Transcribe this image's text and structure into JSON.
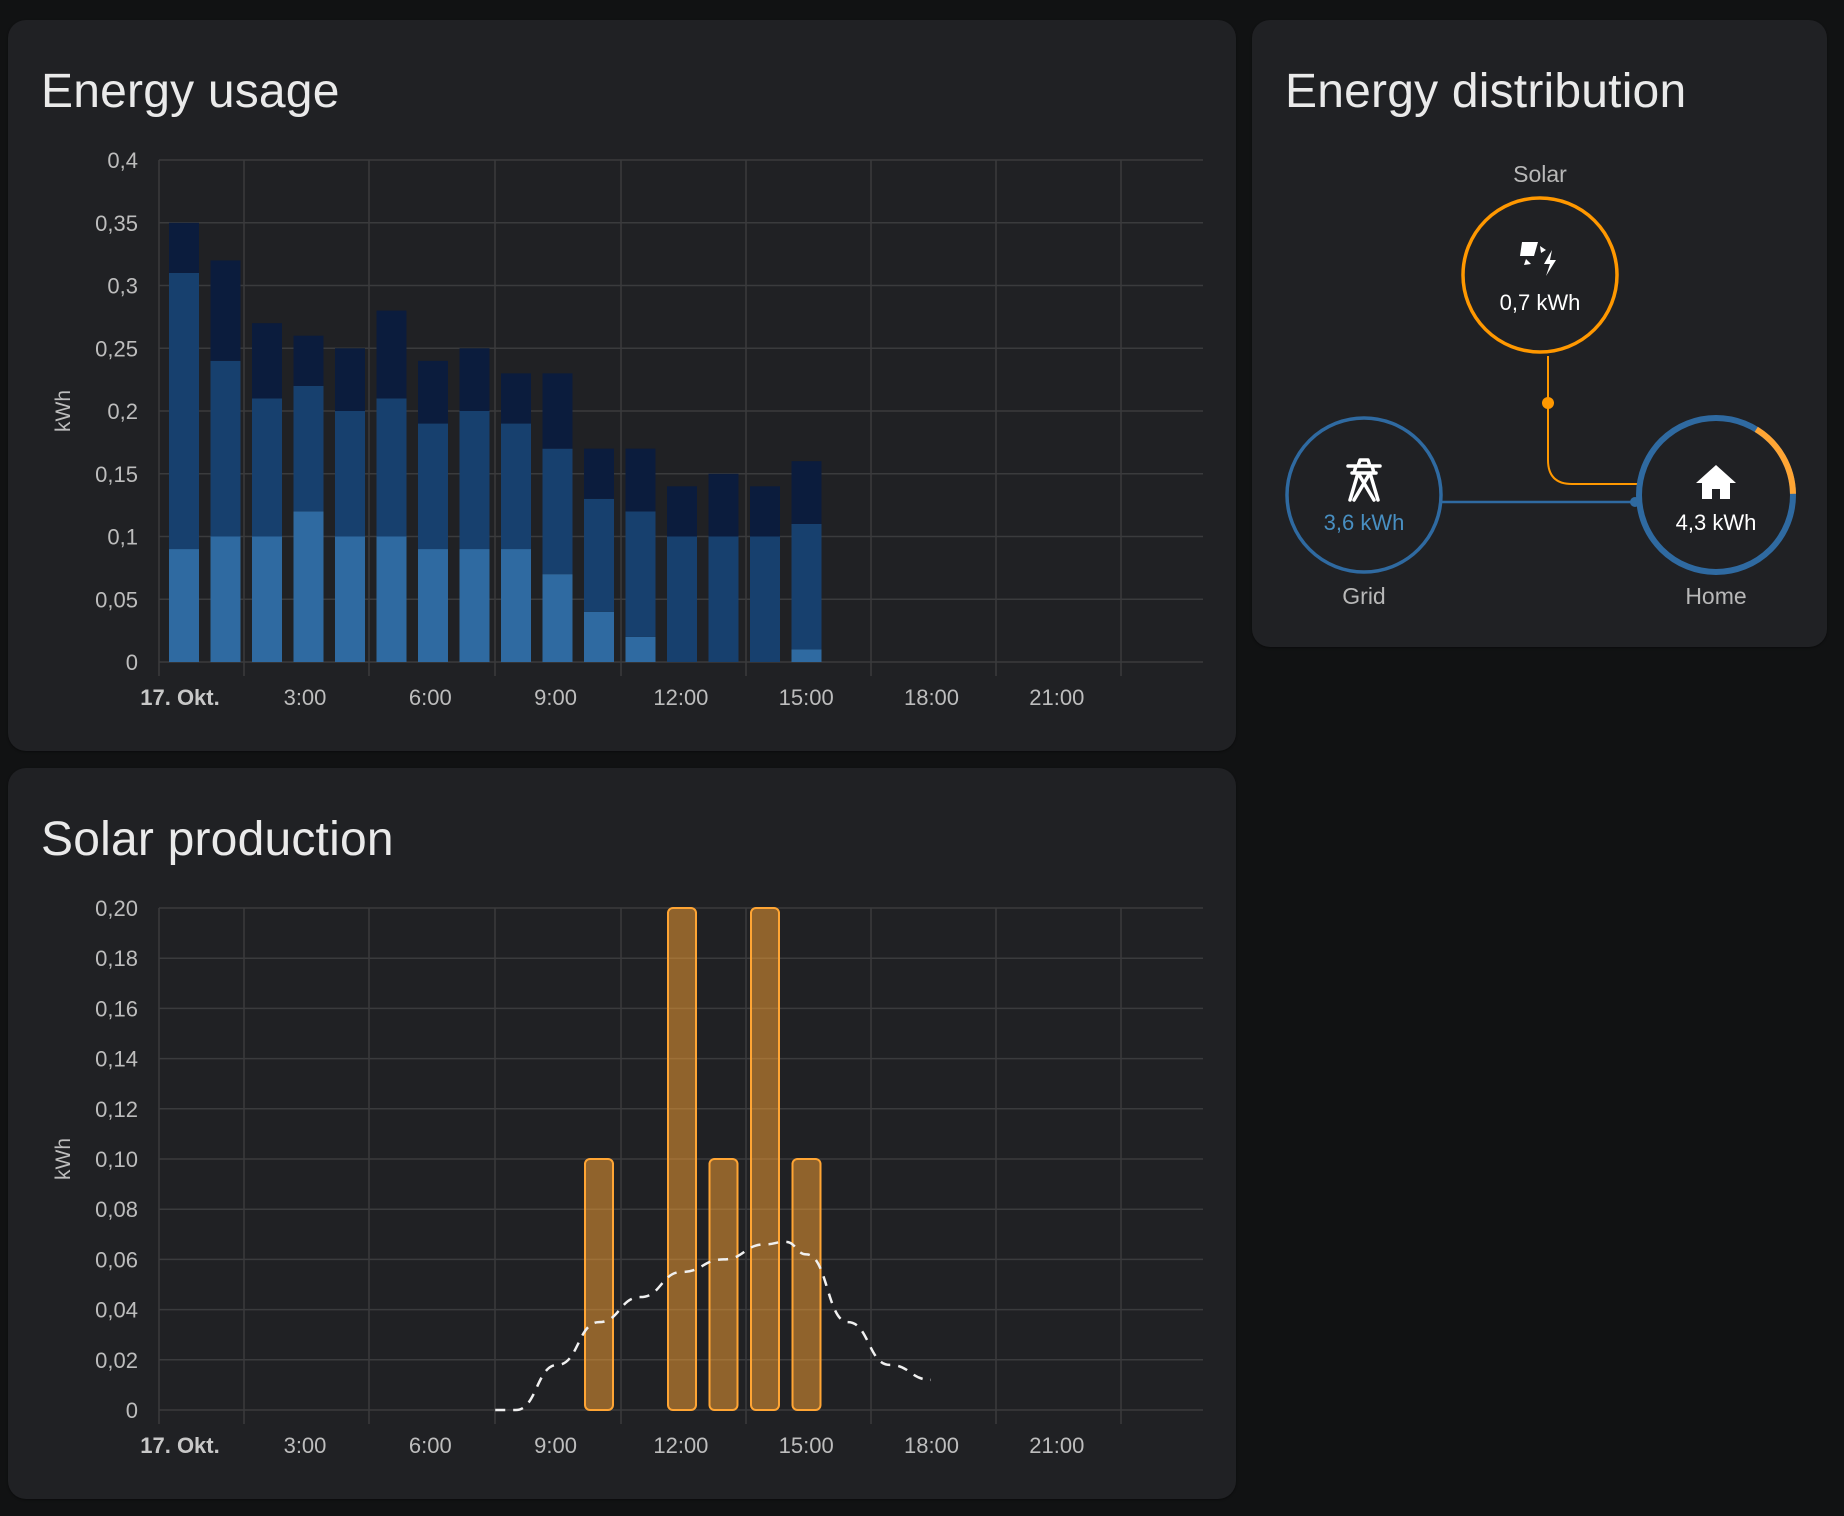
{
  "energy_usage": {
    "title": "Energy usage",
    "chart_data": {
      "type": "bar",
      "stacked": true,
      "title": "Energy usage",
      "xlabel": "",
      "ylabel": "kWh",
      "ylim": [
        0,
        0.4
      ],
      "y_ticks": [
        "0",
        "0,05",
        "0,1",
        "0,15",
        "0,2",
        "0,25",
        "0,3",
        "0,35",
        "0,4"
      ],
      "x_ticks": [
        "17. Okt.",
        "3:00",
        "6:00",
        "9:00",
        "12:00",
        "15:00",
        "18:00",
        "21:00"
      ],
      "hours": [
        0,
        1,
        2,
        3,
        4,
        5,
        6,
        7,
        8,
        9,
        10,
        11,
        12,
        13,
        14,
        15
      ],
      "grid": true,
      "series": [
        {
          "color": "#2f6aa1",
          "values": [
            0.09,
            0.1,
            0.1,
            0.12,
            0.1,
            0.1,
            0.09,
            0.09,
            0.09,
            0.07,
            0.04,
            0.02,
            0,
            0,
            0,
            0.01
          ]
        },
        {
          "color": "#17406e",
          "values": [
            0.22,
            0.14,
            0.11,
            0.1,
            0.1,
            0.11,
            0.1,
            0.11,
            0.1,
            0.1,
            0.09,
            0.1,
            0.1,
            0.1,
            0.1,
            0.1
          ]
        },
        {
          "color": "#0b1c3d",
          "values": [
            0.04,
            0.08,
            0.06,
            0.04,
            0.05,
            0.07,
            0.05,
            0.05,
            0.04,
            0.06,
            0.04,
            0.05,
            0.04,
            0.05,
            0.04,
            0.05
          ]
        }
      ]
    }
  },
  "solar_production": {
    "title": "Solar production",
    "chart_data": {
      "type": "bar",
      "title": "Solar production",
      "xlabel": "",
      "ylabel": "kWh",
      "ylim": [
        0,
        0.2
      ],
      "y_ticks": [
        "0",
        "0,02",
        "0,04",
        "0,06",
        "0,08",
        "0,10",
        "0,12",
        "0,14",
        "0,16",
        "0,18",
        "0,20"
      ],
      "x_ticks": [
        "17. Okt.",
        "3:00",
        "6:00",
        "9:00",
        "12:00",
        "15:00",
        "18:00",
        "21:00"
      ],
      "grid": true,
      "bar_color": "#ffa534",
      "bars": [
        {
          "hour": 10,
          "value": 0.1
        },
        {
          "hour": 12,
          "value": 0.2
        },
        {
          "hour": 13,
          "value": 0.1
        },
        {
          "hour": 14,
          "value": 0.2
        },
        {
          "hour": 15,
          "value": 0.1
        }
      ],
      "forecast": {
        "style": "dashed",
        "color": "#f0f0f0",
        "points": [
          [
            7.5,
            0
          ],
          [
            8,
            0
          ],
          [
            9,
            0.018
          ],
          [
            10,
            0.035
          ],
          [
            11,
            0.045
          ],
          [
            12,
            0.055
          ],
          [
            13,
            0.06
          ],
          [
            14,
            0.066
          ],
          [
            14.5,
            0.067
          ],
          [
            15,
            0.062
          ],
          [
            16,
            0.035
          ],
          [
            17,
            0.018
          ],
          [
            18,
            0.012
          ]
        ]
      }
    }
  },
  "energy_distribution": {
    "title": "Energy distribution",
    "solar": {
      "label": "Solar",
      "value": "0,7 kWh",
      "icon": "solar-power-icon",
      "color": "#ff9800"
    },
    "grid": {
      "label": "Grid",
      "value": "3,6 kWh",
      "icon": "transmission-tower-icon",
      "color": "#488fc2"
    },
    "home": {
      "label": "Home",
      "value": "4,3 kWh",
      "icon": "home-icon",
      "color": "#2f6aa1",
      "solar_share": 0.16
    }
  }
}
